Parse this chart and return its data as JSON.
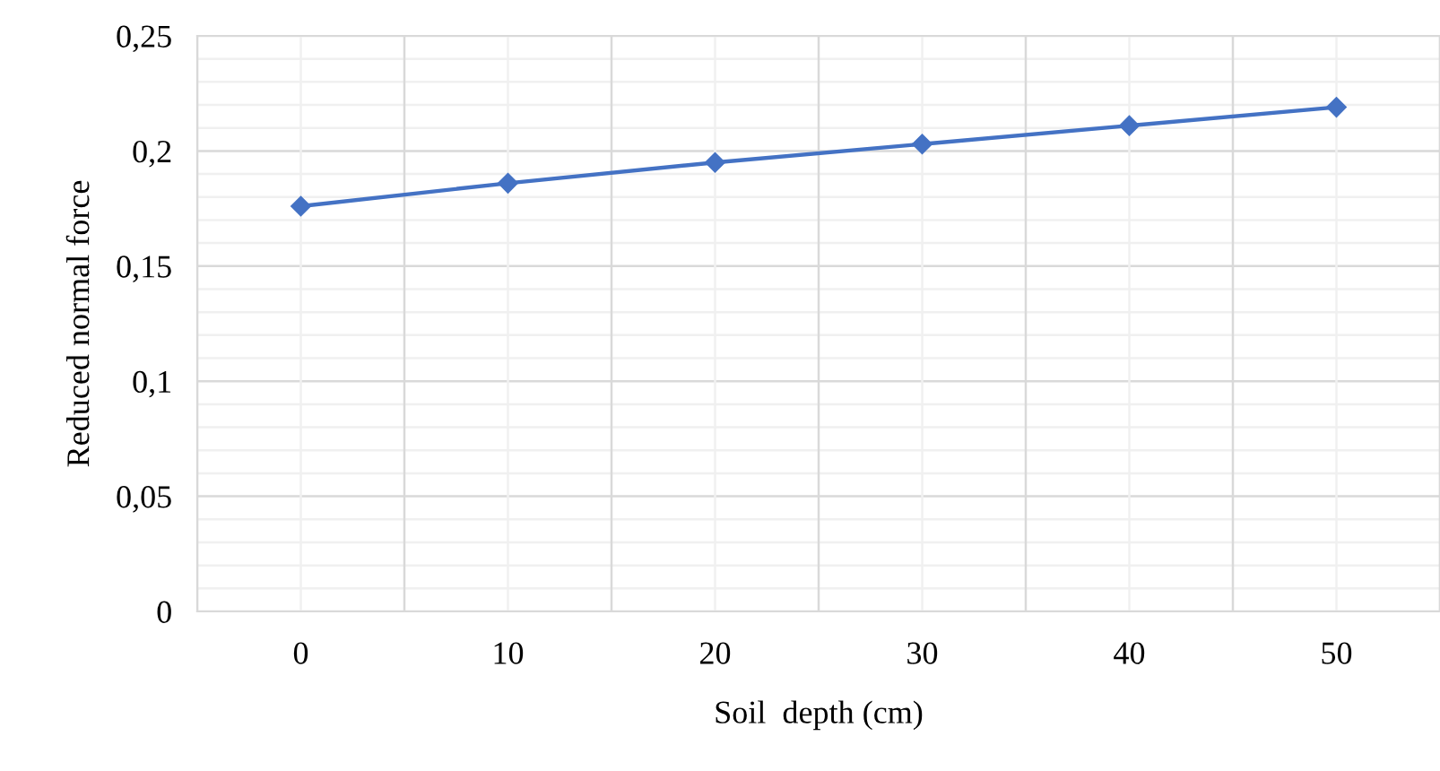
{
  "chart_data": {
    "type": "line",
    "xlabel": "Soil  depth (cm)",
    "ylabel": "Reduced normal force",
    "categories": [
      "0",
      "10",
      "20",
      "30",
      "40",
      "50"
    ],
    "series": [
      {
        "color": "#4472c4",
        "values": [
          0.176,
          0.186,
          0.195,
          0.203,
          0.211,
          0.219
        ]
      }
    ],
    "ylim": [
      0,
      0.25
    ],
    "yticks": [
      {
        "value": 0,
        "label": "0"
      },
      {
        "value": 0.01,
        "label": null
      },
      {
        "value": 0.02,
        "label": null
      },
      {
        "value": 0.03,
        "label": null
      },
      {
        "value": 0.04,
        "label": null
      },
      {
        "value": 0.05,
        "label": "0,05"
      },
      {
        "value": 0.06,
        "label": null
      },
      {
        "value": 0.07,
        "label": null
      },
      {
        "value": 0.08,
        "label": null
      },
      {
        "value": 0.09,
        "label": null
      },
      {
        "value": 0.1,
        "label": "0,1"
      },
      {
        "value": 0.11,
        "label": null
      },
      {
        "value": 0.12,
        "label": null
      },
      {
        "value": 0.13,
        "label": null
      },
      {
        "value": 0.14,
        "label": null
      },
      {
        "value": 0.15,
        "label": "0,15"
      },
      {
        "value": 0.16,
        "label": null
      },
      {
        "value": 0.17,
        "label": null
      },
      {
        "value": 0.18,
        "label": null
      },
      {
        "value": 0.19,
        "label": null
      },
      {
        "value": 0.2,
        "label": "0,2"
      },
      {
        "value": 0.21,
        "label": null
      },
      {
        "value": 0.22,
        "label": null
      },
      {
        "value": 0.23,
        "label": null
      },
      {
        "value": 0.24,
        "label": null
      },
      {
        "value": 0.25,
        "label": "0,25"
      }
    ],
    "grid": true,
    "marker": "diamond",
    "line_style": "solid"
  }
}
